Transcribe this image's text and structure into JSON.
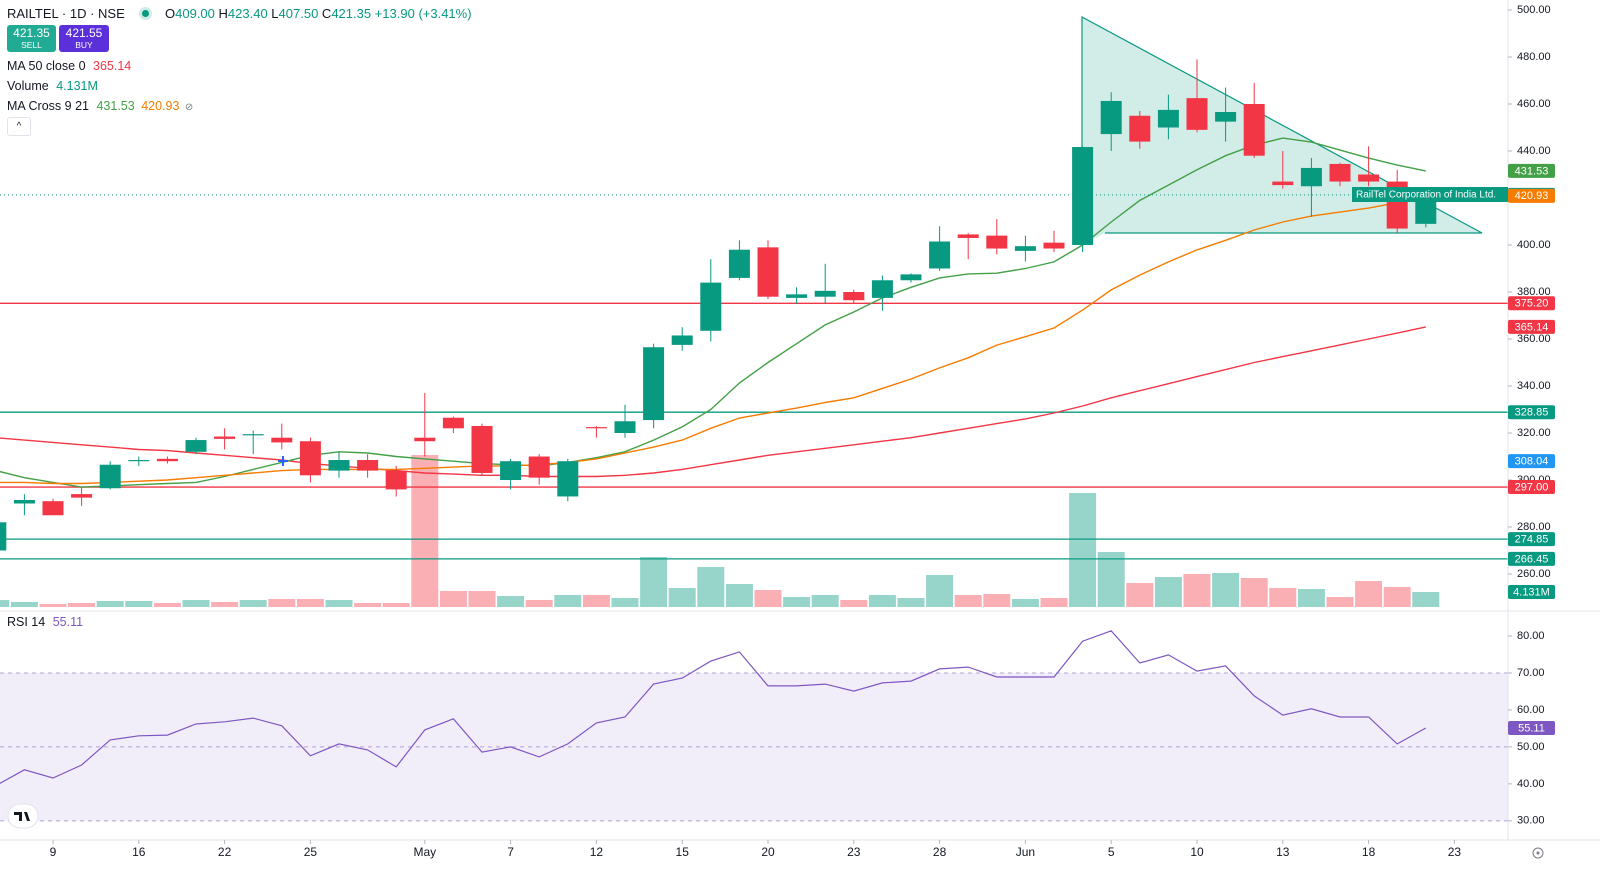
{
  "header": {
    "symbol": "RAILTEL · 1D · NSE",
    "ohlc": [
      {
        "key": "O",
        "value": "409.00"
      },
      {
        "key": "H",
        "value": "423.40"
      },
      {
        "key": "L",
        "value": "407.50"
      },
      {
        "key": "C",
        "value": "421.35"
      }
    ],
    "change": "+13.90 (+3.41%)",
    "sell": {
      "price": "421.35",
      "label": "SELL"
    },
    "buy": {
      "price": "421.55",
      "label": "BUY"
    },
    "indicators": [
      {
        "name": "MA 50 close 0",
        "values": [
          "365.14"
        ]
      },
      {
        "name": "Volume",
        "values": [
          "4.131M"
        ]
      },
      {
        "name": "MA Cross 9 21",
        "values": [
          "431.53",
          "420.93"
        ]
      },
      {
        "name": "RSI 14",
        "values": [
          "55.11"
        ]
      }
    ],
    "tooltip": "RailTel Corporation of India Ltd."
  },
  "chart_data": [
    {
      "type": "candlestick",
      "categories": [
        null,
        null,
        "9",
        null,
        null,
        "16",
        null,
        null,
        "22",
        null,
        null,
        "25",
        null,
        null,
        null,
        "May",
        null,
        null,
        "7",
        null,
        null,
        "12",
        null,
        null,
        "15",
        null,
        null,
        "20",
        null,
        null,
        "23",
        null,
        null,
        "28",
        null,
        null,
        "Jun",
        null,
        null,
        "5",
        null,
        null,
        "10",
        null,
        null,
        "13",
        null,
        null,
        "18",
        null,
        null,
        "23"
      ],
      "open": [
        270,
        290,
        291,
        294,
        296.5,
        308,
        309,
        312,
        318.5,
        319,
        318,
        316.5,
        304,
        308.5,
        304,
        318,
        326.5,
        323,
        300,
        310,
        293,
        322.5,
        320,
        325.5,
        357.5,
        363.5,
        386,
        399,
        377.5,
        378,
        380,
        377.5,
        385,
        390,
        404.5,
        404,
        397.5,
        401,
        400,
        447.2,
        455,
        450,
        462.5,
        452.5,
        460,
        427,
        425,
        434.5,
        430,
        427,
        409,
        null
      ],
      "high": [
        283,
        294,
        292,
        297,
        308,
        310,
        310,
        318,
        322,
        321,
        324,
        318,
        312,
        311,
        306,
        337,
        327,
        324,
        309,
        311,
        309,
        323,
        332,
        358,
        365,
        394,
        402,
        402,
        382,
        392,
        381,
        387,
        388,
        408,
        405,
        411,
        404,
        406,
        442,
        465,
        457,
        464,
        479,
        467,
        469,
        440,
        437,
        435,
        442,
        432,
        423.4,
        null
      ],
      "low": [
        269,
        285,
        285,
        289,
        296,
        306,
        307,
        311,
        313,
        311,
        313,
        299,
        301,
        301,
        293,
        310,
        320,
        302,
        296,
        298,
        291,
        318,
        318,
        322,
        355,
        359,
        385,
        377,
        375,
        375,
        375,
        372,
        384,
        389,
        394,
        396,
        393,
        397,
        397,
        440,
        441,
        445,
        448,
        444,
        437,
        424,
        412,
        425,
        425,
        405,
        407.5,
        null
      ],
      "close": [
        282,
        291.5,
        285,
        292.5,
        306.5,
        308.5,
        308,
        317,
        317.5,
        319.5,
        316,
        302,
        308.5,
        304,
        296,
        316.5,
        322,
        303,
        308,
        301,
        308,
        322,
        325,
        356.5,
        361.5,
        384,
        398,
        378,
        379,
        380.5,
        376.5,
        385,
        387.5,
        401.5,
        403,
        398.5,
        399.5,
        398.5,
        441.7,
        461.3,
        444,
        457.5,
        449,
        456.6,
        438,
        425.5,
        432.8,
        427,
        427,
        407,
        421.35,
        null
      ],
      "up_color": "#089981",
      "down_color": "#f23645",
      "series": [
        {
          "name": "MA 50 close 0",
          "lines": [
            {
              "color": "#f23645",
              "values": [
                318,
                317,
                316,
                315,
                314,
                313,
                312.5,
                311.5,
                310.5,
                309.5,
                308.5,
                307,
                306,
                305,
                304,
                303,
                302.5,
                302,
                302,
                301.5,
                301.5,
                301.5,
                302,
                303,
                304.5,
                306.5,
                308.5,
                310.5,
                312,
                313.5,
                315,
                316.5,
                318,
                320,
                322,
                324,
                326,
                328.5,
                331.5,
                335,
                338,
                341,
                344,
                347,
                350,
                352.5,
                355,
                357.5,
                360,
                362.5,
                365.14,
                null
              ]
            }
          ]
        },
        {
          "name": "MA Cross 9 21",
          "lines": [
            {
              "color": "#43a047",
              "values": [
                304,
                301,
                299,
                297,
                297.5,
                298,
                298.5,
                299,
                301.5,
                304.5,
                307.5,
                310.5,
                312,
                311.5,
                310,
                309,
                308,
                307,
                306.5,
                306,
                307.5,
                309.5,
                312,
                317,
                322.6,
                330,
                341.3,
                350,
                358,
                366,
                371.5,
                377.5,
                382,
                386,
                387.7,
                388,
                390,
                392.8,
                400,
                409.8,
                419,
                425.5,
                432,
                438,
                442.5,
                445.5,
                443.8,
                440.4,
                437,
                434,
                431.53,
                null
              ]
            },
            {
              "color": "#f57c00",
              "values": [
                299,
                299,
                298.5,
                298.5,
                299,
                299.5,
                300,
                301,
                302,
                303,
                304,
                304.5,
                304.5,
                304.5,
                304.5,
                305,
                305.5,
                306,
                306,
                306.5,
                307.5,
                309,
                311.5,
                314,
                317,
                322,
                326.4,
                328.5,
                330.6,
                333,
                335,
                339,
                343,
                347.7,
                352,
                357.4,
                361,
                364.7,
                372.3,
                380.9,
                387.2,
                392.8,
                397.9,
                402,
                406.4,
                409.8,
                412.3,
                414,
                415.7,
                418,
                420.93,
                null
              ]
            }
          ]
        }
      ],
      "volume": {
        "values": [
          1928000,
          1377000,
          826000,
          1102000,
          1652000,
          1652000,
          1102000,
          1928000,
          1377000,
          1928000,
          2203000,
          2203000,
          1928000,
          1102000,
          1102000,
          41861000,
          4406000,
          4406000,
          3029000,
          1928000,
          3305000,
          3305000,
          2479000,
          13770000,
          5233000,
          11016000,
          6334000,
          4682000,
          2754000,
          3305000,
          1928000,
          3305000,
          2479000,
          8813000,
          3305000,
          3580000,
          2203000,
          2479000,
          31396000,
          15147000,
          6610000,
          8262000,
          9088000,
          9364000,
          7987000,
          5233000,
          4957000,
          2754000,
          7160000,
          5508000,
          4131000,
          null
        ],
        "last": {
          "value": 4131000,
          "label": "4.131M"
        },
        "color": "#089981"
      },
      "ylim": [
        245.96,
        504.26
      ],
      "yticks": [
        {
          "value": 500,
          "label": "500.00"
        },
        {
          "value": 480,
          "label": "480.00"
        },
        {
          "value": 460,
          "label": "460.00"
        },
        {
          "value": 440,
          "label": "440.00"
        },
        {
          "value": 420,
          "label": "420.00"
        },
        {
          "value": 400,
          "label": "400.00"
        },
        {
          "value": 380,
          "label": "380.00"
        },
        {
          "value": 360,
          "label": "360.00"
        },
        {
          "value": 340,
          "label": "340.00"
        },
        {
          "value": 320,
          "label": "320.00"
        },
        {
          "value": 300,
          "label": "300.00"
        },
        {
          "value": 280,
          "label": "280.00"
        },
        {
          "value": 260,
          "label": "260.00"
        }
      ],
      "hlines": [
        {
          "value": 375.2,
          "label": "375.20",
          "color": "#f23645"
        },
        {
          "value": 297,
          "label": "297.00",
          "color": "#f23645"
        },
        {
          "value": 328.85,
          "label": "328.85",
          "color": "#089981"
        },
        {
          "value": 274.85,
          "label": "274.85",
          "color": "#089981"
        },
        {
          "value": 266.45,
          "label": "266.45",
          "color": "#089981"
        }
      ],
      "price_labels": [
        {
          "value": 431.53,
          "label": "431.53",
          "color": "#43a047"
        },
        {
          "value": 421.35,
          "label": "421.35",
          "color": "#089981"
        },
        {
          "value": 420.93,
          "label": "420.93",
          "color": "#f57c00"
        },
        {
          "value": 365.14,
          "label": "365.14",
          "color": "#f23645"
        },
        {
          "value": 308.04,
          "label": "308.04",
          "color": "#2196f3"
        }
      ]
    },
    {
      "type": "line",
      "series": [
        {
          "name": "RSI 14",
          "color": "#7e57c2",
          "values": [
            39.5,
            43.8,
            41.6,
            45.1,
            51.9,
            53,
            53.2,
            56.2,
            56.8,
            57.8,
            55.7,
            47.6,
            50.8,
            49.2,
            44.6,
            54.6,
            57.6,
            48.6,
            50,
            47.3,
            50.8,
            56.5,
            58.1,
            67,
            68.6,
            73.2,
            75.7,
            66.5,
            66.5,
            67,
            65.1,
            67.3,
            67.8,
            71.1,
            71.6,
            68.9,
            68.9,
            68.9,
            78.6,
            81.4,
            72.7,
            74.9,
            70.5,
            71.9,
            63.8,
            58.6,
            60.3,
            58.1,
            58.1,
            50.8,
            55.11,
            null
          ]
        }
      ],
      "last": {
        "value": 55.11,
        "label": "55.11"
      },
      "levels": [
        70,
        50,
        30
      ],
      "ylim": [
        25.9,
        85.68
      ],
      "yticks": [
        {
          "value": 80,
          "label": "80.00"
        },
        {
          "value": 70,
          "label": "70.00"
        },
        {
          "value": 60,
          "label": "60.00"
        },
        {
          "value": 50,
          "label": "50.00"
        },
        {
          "value": 40,
          "label": "40.00"
        },
        {
          "value": 30,
          "label": "30.00"
        }
      ]
    }
  ]
}
